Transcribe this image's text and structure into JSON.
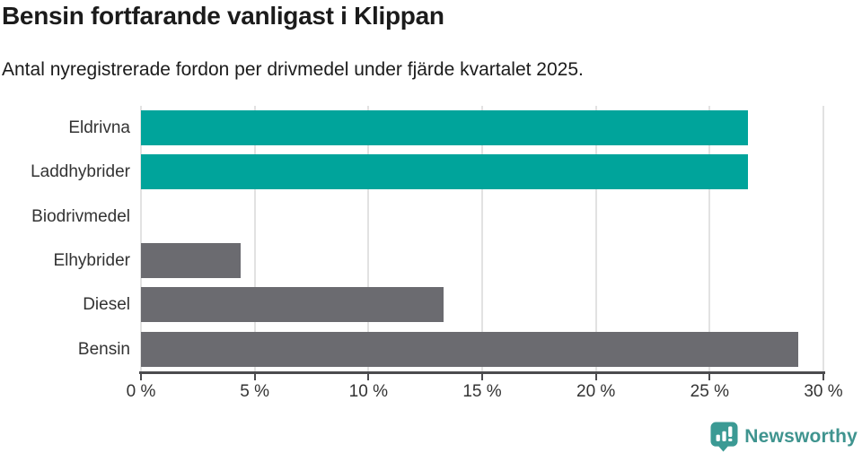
{
  "header": {
    "title": "Bensin fortfarande vanligast i Klippan",
    "subtitle": "Antal nyregistrerade fordon per drivmedel under fjärde kvartalet 2025."
  },
  "chart_data": {
    "type": "bar",
    "orientation": "horizontal",
    "title": "Bensin fortfarande vanligast i Klippan",
    "subtitle": "Antal nyregistrerade fordon per drivmedel under fjärde kvartalet 2025.",
    "categories": [
      "Eldrivna",
      "Laddhybrider",
      "Biodrivmedel",
      "Elhybrider",
      "Diesel",
      "Bensin"
    ],
    "values": [
      26.7,
      26.7,
      0,
      4.4,
      13.3,
      28.9
    ],
    "bar_colors": [
      "#00a49b",
      "#00a49b",
      "#6b6b70",
      "#6b6b70",
      "#6b6b70",
      "#6b6b70"
    ],
    "xlabel": "",
    "ylabel": "",
    "xlim": [
      0,
      30
    ],
    "x_tick_values": [
      0,
      5,
      10,
      15,
      20,
      25,
      30
    ],
    "x_tick_labels": [
      "0 %",
      "5 %",
      "10 %",
      "15 %",
      "20 %",
      "25 %",
      "30 %"
    ],
    "grid": true,
    "legend": false
  },
  "colors": {
    "highlight": "#00a49b",
    "neutral": "#6b6b70",
    "gridline": "#e2e2e2",
    "axis": "#4b4b4e",
    "text": "#1b1b1b",
    "tick_text": "#333333",
    "brand": "#3f948f"
  },
  "footer": {
    "brand": "Newsworthy",
    "icon": "newsworthy-speech-bubble-bar-chart-icon"
  }
}
